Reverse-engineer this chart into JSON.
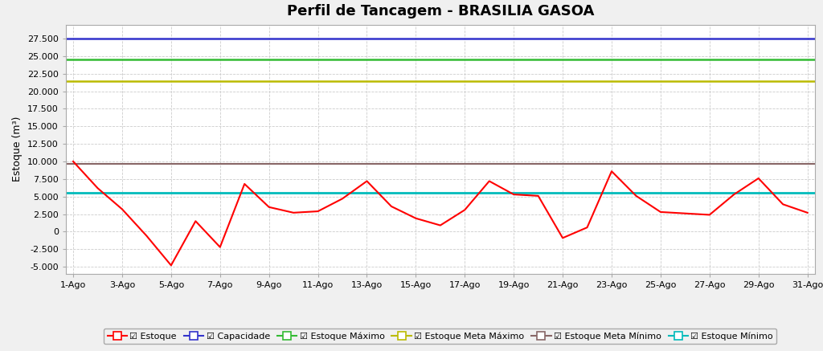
{
  "title": "Perfil de Tancagem - BRASILIA GASOA",
  "ylabel": "Estoque (m³)",
  "xlabel": "",
  "x_labels": [
    "1-Ago",
    "3-Ago",
    "5-Ago",
    "7-Ago",
    "9-Ago",
    "11-Ago",
    "13-Ago",
    "15-Ago",
    "17-Ago",
    "19-Ago",
    "21-Ago",
    "23-Ago",
    "25-Ago",
    "27-Ago",
    "29-Ago",
    "31-Ago"
  ],
  "x_ticks": [
    0,
    2,
    4,
    6,
    8,
    10,
    12,
    14,
    16,
    18,
    20,
    22,
    24,
    26,
    28,
    30
  ],
  "estoque_x": [
    0,
    1,
    2,
    3,
    4,
    5,
    6,
    7,
    8,
    9,
    10,
    11,
    12,
    13,
    14,
    15,
    16,
    17,
    18,
    19,
    20,
    21,
    22,
    23,
    24,
    25,
    26,
    27,
    28,
    29,
    30
  ],
  "estoque_y": [
    10000,
    6200,
    3200,
    -600,
    -4800,
    1500,
    -2200,
    6800,
    3500,
    2700,
    2900,
    4700,
    7200,
    3600,
    1900,
    900,
    3100,
    7200,
    5300,
    5100,
    -900,
    600,
    8600,
    5100,
    2800,
    2600,
    2400,
    5300,
    7600,
    3900,
    2700
  ],
  "capacidade": 27500,
  "estoque_maximo": 24500,
  "estoque_meta_maximo": 21500,
  "estoque_meta_minimo": 9700,
  "estoque_minimo": 5500,
  "ylim_min": -6000,
  "ylim_max": 29500,
  "yticks": [
    -5000,
    -2500,
    0,
    2500,
    5000,
    7500,
    10000,
    12500,
    15000,
    17500,
    20000,
    22500,
    25000,
    27500
  ],
  "ytick_labels": [
    "-5.000",
    "-2.500",
    "0",
    "2.500",
    "5.000",
    "7.500",
    "10.000",
    "12.500",
    "15.000",
    "17.500",
    "20.000",
    "22.500",
    "25.000",
    "27.500"
  ],
  "color_estoque": "#ff0000",
  "color_capacidade": "#3333cc",
  "color_estoque_maximo": "#33bb33",
  "color_estoque_meta_maximo": "#bbbb00",
  "color_estoque_meta_minimo": "#886666",
  "color_estoque_minimo": "#00bbbb",
  "bg_color": "#f0f0f0",
  "plot_bg": "#ffffff",
  "grid_color": "#cccccc",
  "title_fontsize": 13,
  "label_fontsize": 9,
  "tick_fontsize": 8,
  "legend_fontsize": 8
}
